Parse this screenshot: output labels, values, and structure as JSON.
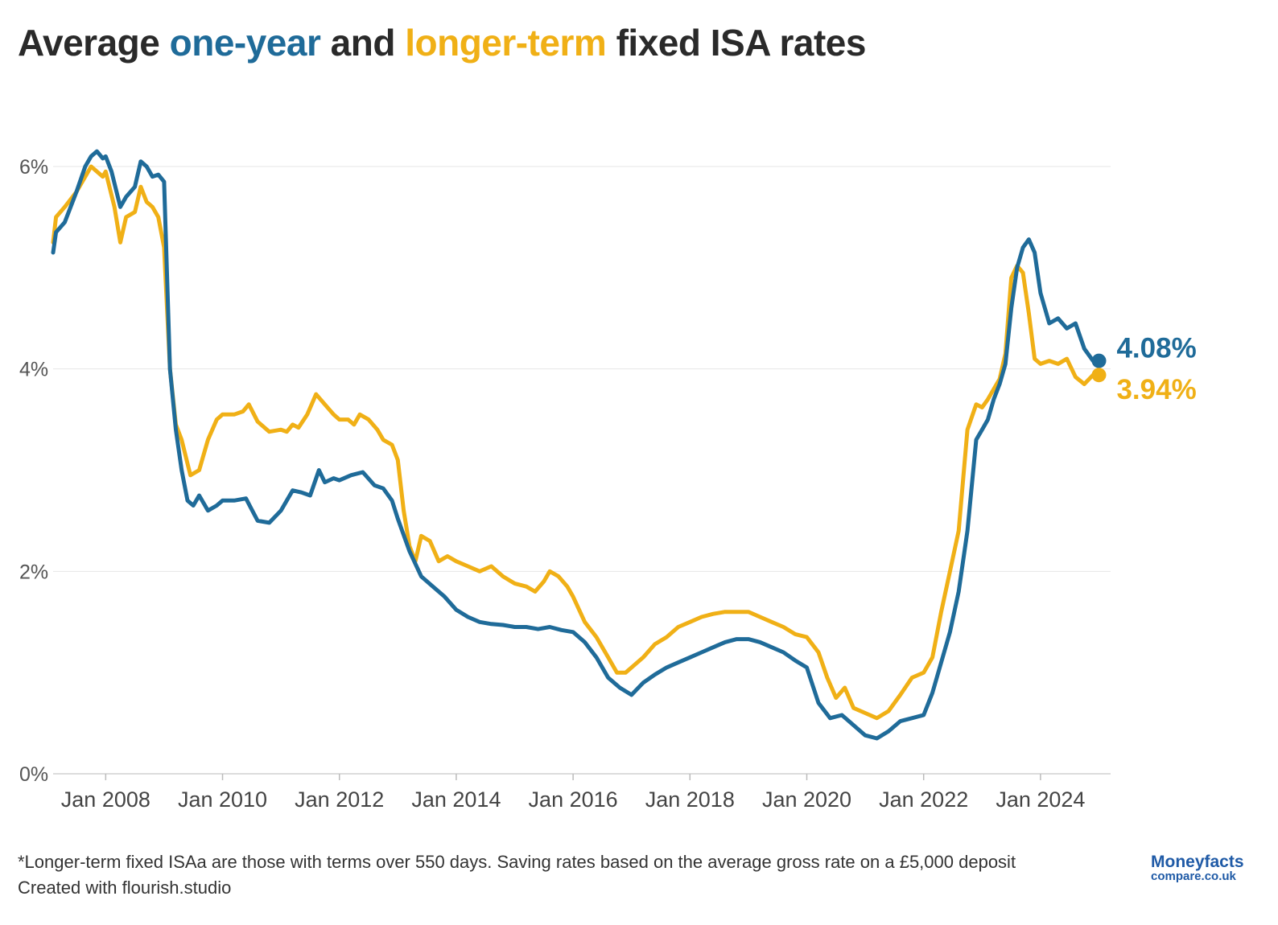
{
  "title": {
    "part1": "Average ",
    "part2": "one-year",
    "part3": " and ",
    "part4": "longer-term",
    "part5": " fixed ISA rates"
  },
  "colors": {
    "one_year": "#1f6b99",
    "longer_term": "#f0b016",
    "grid": "#e6e6e6",
    "axis": "#d0d0d0"
  },
  "footnote": {
    "line1": "*Longer-term fixed ISAa are those with terms over 550 days. Saving rates based on the average gross rate on a £5,000 deposit",
    "line2": "Created with flourish.studio"
  },
  "logo": {
    "line1": "Moneyfacts",
    "line2": "compare.co.uk"
  },
  "chart_data": {
    "type": "line",
    "title": "Average one-year and longer-term fixed ISA rates",
    "xlabel": "",
    "ylabel": "",
    "ylim": [
      0,
      6
    ],
    "y_ticks": [
      "0%",
      "2%",
      "4%",
      "6%"
    ],
    "x_ticks": [
      "Jan 2008",
      "Jan 2010",
      "Jan 2012",
      "Jan 2014",
      "Jan 2016",
      "Jan 2018",
      "Jan 2020",
      "Jan 2022",
      "Jan 2024"
    ],
    "x_tick_years": [
      2008,
      2010,
      2012,
      2014,
      2016,
      2018,
      2020,
      2022,
      2024
    ],
    "xlim": [
      2007.1,
      2025.2
    ],
    "grid": true,
    "legend": "none (series named by coloured title words)",
    "series": [
      {
        "key": "one_year",
        "end_label": "4.08%",
        "x": [
          2007.1,
          2007.15,
          2007.3,
          2007.5,
          2007.65,
          2007.75,
          2007.85,
          2007.95,
          2008.0,
          2008.1,
          2008.25,
          2008.35,
          2008.5,
          2008.6,
          2008.7,
          2008.8,
          2008.9,
          2009.0,
          2009.1,
          2009.2,
          2009.3,
          2009.4,
          2009.5,
          2009.6,
          2009.75,
          2009.9,
          2010.0,
          2010.2,
          2010.4,
          2010.6,
          2010.8,
          2011.0,
          2011.2,
          2011.35,
          2011.5,
          2011.65,
          2011.75,
          2011.9,
          2012.0,
          2012.2,
          2012.4,
          2012.6,
          2012.75,
          2012.9,
          2013.0,
          2013.2,
          2013.4,
          2013.6,
          2013.8,
          2014.0,
          2014.2,
          2014.4,
          2014.6,
          2014.8,
          2015.0,
          2015.2,
          2015.4,
          2015.6,
          2015.8,
          2016.0,
          2016.2,
          2016.4,
          2016.6,
          2016.8,
          2017.0,
          2017.2,
          2017.4,
          2017.6,
          2017.8,
          2018.0,
          2018.2,
          2018.4,
          2018.6,
          2018.8,
          2019.0,
          2019.2,
          2019.4,
          2019.6,
          2019.8,
          2020.0,
          2020.2,
          2020.4,
          2020.6,
          2020.8,
          2021.0,
          2021.2,
          2021.4,
          2021.6,
          2021.8,
          2022.0,
          2022.15,
          2022.3,
          2022.45,
          2022.6,
          2022.75,
          2022.9,
          2023.0,
          2023.1,
          2023.2,
          2023.3,
          2023.4,
          2023.5,
          2023.6,
          2023.7,
          2023.8,
          2023.9,
          2024.0,
          2024.15,
          2024.3,
          2024.45,
          2024.6,
          2024.75,
          2024.9,
          2025.0
        ],
        "y": [
          5.15,
          5.35,
          5.45,
          5.75,
          6.0,
          6.1,
          6.15,
          6.08,
          6.1,
          5.95,
          5.6,
          5.7,
          5.8,
          6.05,
          6.0,
          5.9,
          5.92,
          5.85,
          4.0,
          3.4,
          3.0,
          2.7,
          2.65,
          2.75,
          2.6,
          2.65,
          2.7,
          2.7,
          2.72,
          2.5,
          2.48,
          2.6,
          2.8,
          2.78,
          2.75,
          3.0,
          2.88,
          2.92,
          2.9,
          2.95,
          2.98,
          2.85,
          2.82,
          2.7,
          2.52,
          2.2,
          1.95,
          1.85,
          1.75,
          1.62,
          1.55,
          1.5,
          1.48,
          1.47,
          1.45,
          1.45,
          1.43,
          1.45,
          1.42,
          1.4,
          1.3,
          1.15,
          0.95,
          0.85,
          0.78,
          0.9,
          0.98,
          1.05,
          1.1,
          1.15,
          1.2,
          1.25,
          1.3,
          1.33,
          1.33,
          1.3,
          1.25,
          1.2,
          1.12,
          1.05,
          0.7,
          0.55,
          0.58,
          0.48,
          0.38,
          0.35,
          0.42,
          0.52,
          0.55,
          0.58,
          0.8,
          1.1,
          1.4,
          1.8,
          2.4,
          3.3,
          3.4,
          3.5,
          3.7,
          3.85,
          4.05,
          4.6,
          5.0,
          5.2,
          5.28,
          5.15,
          4.75,
          4.45,
          4.5,
          4.4,
          4.45,
          4.2,
          4.08,
          4.08
        ],
        "color": "#1f6b99"
      },
      {
        "key": "longer_term",
        "end_label": "3.94%",
        "x": [
          2007.1,
          2007.15,
          2007.3,
          2007.5,
          2007.65,
          2007.75,
          2007.85,
          2007.95,
          2008.0,
          2008.15,
          2008.25,
          2008.35,
          2008.5,
          2008.6,
          2008.7,
          2008.8,
          2008.9,
          2009.0,
          2009.1,
          2009.2,
          2009.3,
          2009.45,
          2009.6,
          2009.75,
          2009.9,
          2010.0,
          2010.1,
          2010.2,
          2010.35,
          2010.45,
          2010.6,
          2010.8,
          2011.0,
          2011.1,
          2011.2,
          2011.3,
          2011.45,
          2011.6,
          2011.75,
          2011.9,
          2012.0,
          2012.15,
          2012.25,
          2012.35,
          2012.5,
          2012.65,
          2012.75,
          2012.9,
          2013.0,
          2013.1,
          2013.2,
          2013.3,
          2013.4,
          2013.55,
          2013.7,
          2013.85,
          2014.0,
          2014.2,
          2014.4,
          2014.6,
          2014.8,
          2015.0,
          2015.2,
          2015.35,
          2015.5,
          2015.6,
          2015.75,
          2015.9,
          2016.0,
          2016.2,
          2016.4,
          2016.6,
          2016.75,
          2016.9,
          2017.0,
          2017.2,
          2017.4,
          2017.6,
          2017.8,
          2018.0,
          2018.2,
          2018.4,
          2018.6,
          2018.8,
          2019.0,
          2019.2,
          2019.4,
          2019.6,
          2019.8,
          2020.0,
          2020.2,
          2020.35,
          2020.5,
          2020.65,
          2020.8,
          2021.0,
          2021.2,
          2021.4,
          2021.6,
          2021.8,
          2022.0,
          2022.15,
          2022.3,
          2022.45,
          2022.6,
          2022.75,
          2022.9,
          2023.0,
          2023.1,
          2023.2,
          2023.3,
          2023.4,
          2023.5,
          2023.6,
          2023.7,
          2023.8,
          2023.9,
          2024.0,
          2024.15,
          2024.3,
          2024.45,
          2024.6,
          2024.75,
          2024.9,
          2025.0
        ],
        "y": [
          5.25,
          5.5,
          5.6,
          5.75,
          5.9,
          6.0,
          5.95,
          5.9,
          5.95,
          5.6,
          5.25,
          5.5,
          5.55,
          5.8,
          5.65,
          5.6,
          5.5,
          5.2,
          4.0,
          3.45,
          3.3,
          2.95,
          3.0,
          3.3,
          3.5,
          3.55,
          3.55,
          3.55,
          3.58,
          3.65,
          3.48,
          3.38,
          3.4,
          3.38,
          3.45,
          3.42,
          3.55,
          3.75,
          3.65,
          3.55,
          3.5,
          3.5,
          3.45,
          3.55,
          3.5,
          3.4,
          3.3,
          3.25,
          3.1,
          2.6,
          2.25,
          2.1,
          2.35,
          2.3,
          2.1,
          2.15,
          2.1,
          2.05,
          2.0,
          2.05,
          1.95,
          1.88,
          1.85,
          1.8,
          1.9,
          2.0,
          1.95,
          1.85,
          1.75,
          1.5,
          1.35,
          1.15,
          1.0,
          1.0,
          1.05,
          1.15,
          1.28,
          1.35,
          1.45,
          1.5,
          1.55,
          1.58,
          1.6,
          1.6,
          1.6,
          1.55,
          1.5,
          1.45,
          1.38,
          1.35,
          1.2,
          0.95,
          0.75,
          0.85,
          0.65,
          0.6,
          0.55,
          0.62,
          0.78,
          0.95,
          1.0,
          1.15,
          1.6,
          2.0,
          2.4,
          3.4,
          3.65,
          3.62,
          3.7,
          3.8,
          3.9,
          4.15,
          4.9,
          5.02,
          4.95,
          4.55,
          4.1,
          4.05,
          4.08,
          4.05,
          4.1,
          3.92,
          3.85,
          3.94,
          3.94
        ],
        "color": "#f0b016"
      }
    ]
  }
}
